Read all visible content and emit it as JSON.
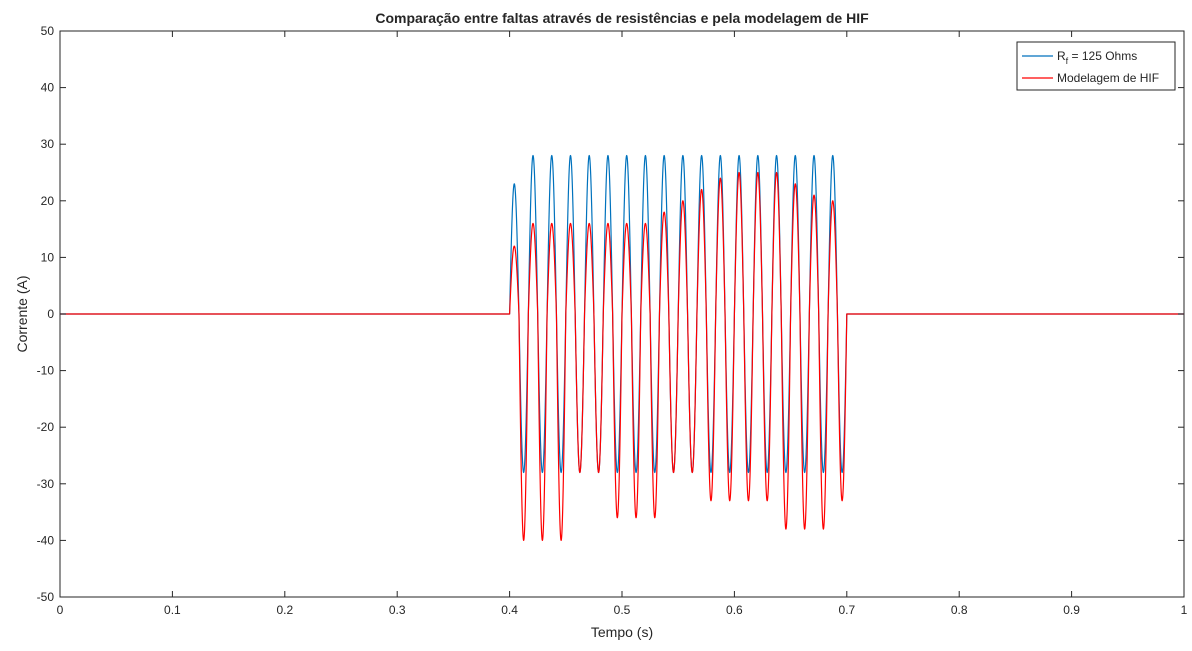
{
  "chart_data": {
    "type": "line",
    "title": "Comparação entre faltas através de resistências e pela modelagem de HIF",
    "xlabel": "Tempo (s)",
    "ylabel": "Corrente (A)",
    "xlim": [
      0,
      1
    ],
    "ylim": [
      -50,
      50
    ],
    "xticks": [
      0,
      0.1,
      0.2,
      0.3,
      0.4,
      0.5,
      0.6,
      0.7,
      0.8,
      0.9,
      1
    ],
    "xtick_labels": [
      "0",
      "0.1",
      "0.2",
      "0.3",
      "0.4",
      "0.5",
      "0.6",
      "0.7",
      "0.8",
      "0.9",
      "1"
    ],
    "yticks": [
      -50,
      -40,
      -30,
      -20,
      -10,
      0,
      10,
      20,
      30,
      40,
      50
    ],
    "ytick_labels": [
      "-50",
      "-40",
      "-30",
      "-20",
      "-10",
      "0",
      "10",
      "20",
      "30",
      "40",
      "50"
    ],
    "grid": false,
    "legend_position": "top-right",
    "fault_interval": [
      0.4,
      0.7
    ],
    "frequency_hz": 60,
    "series": [
      {
        "name_main": "R",
        "name_sub": "f",
        "name_rest": " = 125 Ohms",
        "color": "#0072BD",
        "peaks_positive": [
          23,
          28,
          28,
          28,
          28,
          28,
          28,
          28,
          28,
          28,
          28,
          28,
          28,
          28,
          28,
          28,
          28,
          28,
          28
        ],
        "peaks_negative": [
          -28,
          -28,
          -28,
          -28,
          -28,
          -28,
          -28,
          -28,
          -28,
          -28,
          -28,
          -28,
          -28,
          -28,
          -28,
          -28,
          -28,
          -28
        ]
      },
      {
        "name": "Modelagem de HIF",
        "color": "#FF0000",
        "peaks_positive": [
          12,
          16,
          16,
          16,
          16,
          16,
          16,
          16,
          18,
          20,
          22,
          24,
          25,
          25,
          25,
          23,
          21,
          20,
          20
        ],
        "peaks_negative": [
          -40,
          -40,
          -40,
          -28,
          -28,
          -36,
          -36,
          -36,
          -28,
          -28,
          -33,
          -33,
          -33,
          -33,
          -38,
          -38,
          -38,
          -33
        ]
      }
    ]
  }
}
